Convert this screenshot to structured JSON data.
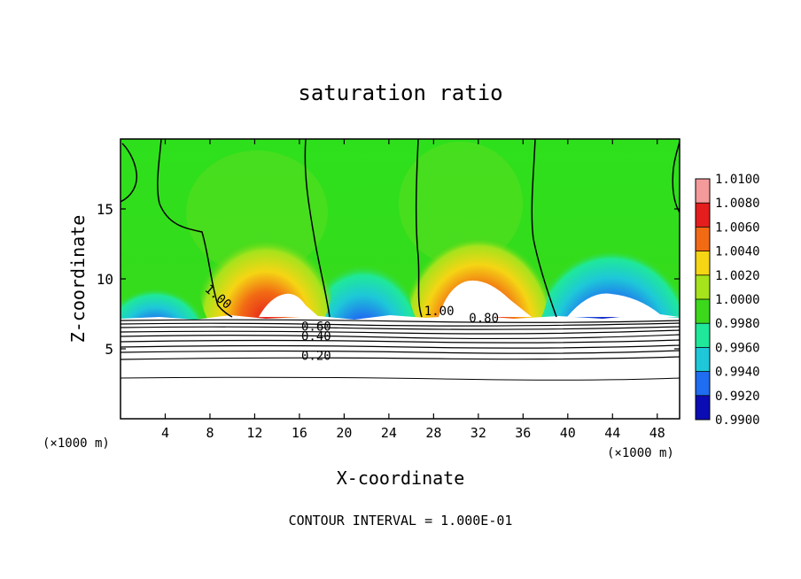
{
  "chart_data": {
    "type": "contour",
    "title": "saturation ratio",
    "xlabel": "X-coordinate",
    "ylabel": "Z-coordinate",
    "x_unit_left": "(×1000 m)",
    "x_unit_right": "(×1000 m)",
    "footer": "CONTOUR INTERVAL = 1.000E-01",
    "xlim": [
      0,
      50
    ],
    "ylim": [
      0,
      20
    ],
    "xticks": [
      4,
      8,
      12,
      16,
      20,
      24,
      28,
      32,
      36,
      40,
      44,
      48
    ],
    "yticks": [
      5,
      10,
      15
    ],
    "colorbar": {
      "levels": [
        "0.9900",
        "0.9920",
        "0.9940",
        "0.9960",
        "0.9980",
        "1.0000",
        "1.0020",
        "1.0040",
        "1.0060",
        "1.0080",
        "1.0100"
      ],
      "colors": [
        "#6a0080",
        "#0c0cb4",
        "#1f6df0",
        "#1ec8d8",
        "#1fe89a",
        "#3cd81c",
        "#a6e31c",
        "#f5d514",
        "#f26a14",
        "#e41d1d",
        "#f49a9a"
      ]
    },
    "contour_labels": [
      {
        "text": "1.00",
        "x": 8.5,
        "y": 8.5
      },
      {
        "text": "1.00",
        "x": 28.5,
        "y": 7.4
      },
      {
        "text": "0.80",
        "x": 32.5,
        "y": 6.9
      },
      {
        "text": "0.60",
        "x": 17.5,
        "y": 6.3
      },
      {
        "text": "0.40",
        "x": 17.5,
        "y": 5.6
      },
      {
        "text": "0.20",
        "x": 17.5,
        "y": 4.2
      }
    ]
  }
}
